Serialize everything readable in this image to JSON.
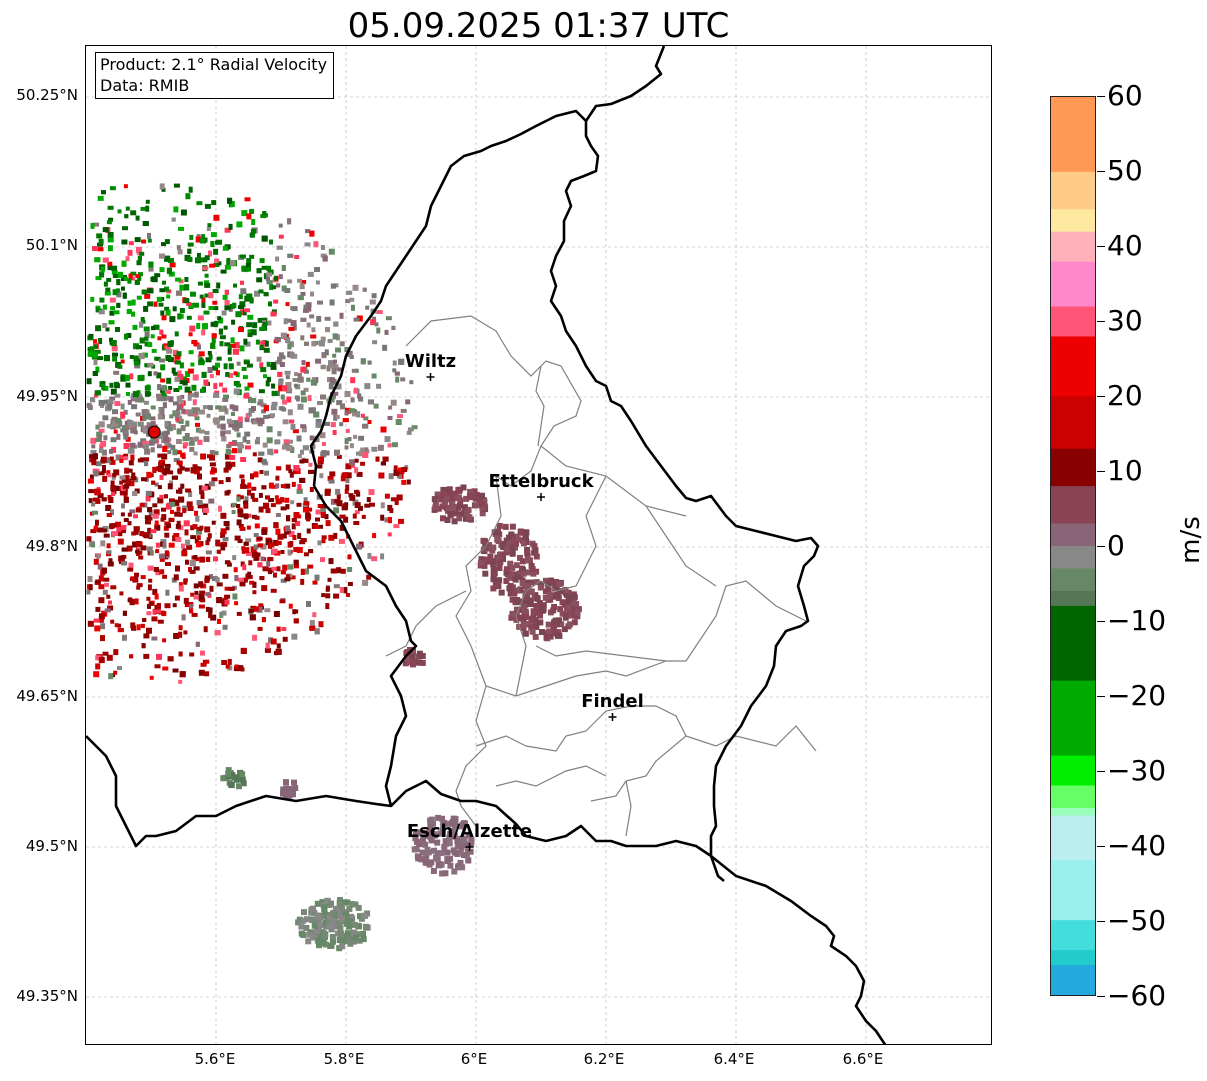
{
  "title": "05.09.2025 01:37 UTC",
  "info": {
    "product": "Product: 2.1° Radial Velocity",
    "data": "Data: RMIB"
  },
  "axes": {
    "lat_labels": [
      "50.25°N",
      "50.1°N",
      "49.95°N",
      "49.8°N",
      "49.65°N",
      "49.5°N",
      "49.35°N"
    ],
    "lon_labels": [
      "5.6°E",
      "5.8°E",
      "6°E",
      "6.2°E",
      "6.4°E",
      "6.6°E"
    ]
  },
  "cities": [
    {
      "name": "Wiltz",
      "lon": 5.93,
      "lat": 49.97
    },
    {
      "name": "Ettelbruck",
      "lon": 6.1,
      "lat": 49.85
    },
    {
      "name": "Findel",
      "lon": 6.21,
      "lat": 49.63
    },
    {
      "name": "Esch/Alzette",
      "lon": 5.99,
      "lat": 49.5
    }
  ],
  "radar_site": {
    "lon": 5.505,
    "lat": 49.915,
    "color": "#dd0000"
  },
  "colorbar": {
    "unit": "m/s",
    "min": -60,
    "max": 60,
    "tick_labels": [
      "60",
      "50",
      "40",
      "30",
      "20",
      "10",
      "0",
      "−10",
      "−20",
      "−30",
      "−40",
      "−50",
      "−60"
    ],
    "stops": [
      {
        "v": 60,
        "c": "#ff9955"
      },
      {
        "v": 50,
        "c": "#ffcc88"
      },
      {
        "v": 45,
        "c": "#ffe9a0"
      },
      {
        "v": 42,
        "c": "#ffb0b8"
      },
      {
        "v": 38,
        "c": "#ff88cc"
      },
      {
        "v": 32,
        "c": "#ff5577"
      },
      {
        "v": 28,
        "c": "#ee0000"
      },
      {
        "v": 20,
        "c": "#cc0000"
      },
      {
        "v": 13,
        "c": "#880000"
      },
      {
        "v": 8,
        "c": "#884455"
      },
      {
        "v": 3,
        "c": "#886677"
      },
      {
        "v": 0,
        "c": "#888888"
      },
      {
        "v": -3,
        "c": "#668866"
      },
      {
        "v": -6,
        "c": "#557755"
      },
      {
        "v": -8,
        "c": "#006600"
      },
      {
        "v": -18,
        "c": "#00aa00"
      },
      {
        "v": -28,
        "c": "#00ee00"
      },
      {
        "v": -32,
        "c": "#66ff66"
      },
      {
        "v": -35,
        "c": "#99ffbb"
      },
      {
        "v": -36,
        "c": "#bbeeee"
      },
      {
        "v": -42,
        "c": "#99eeee"
      },
      {
        "v": -50,
        "c": "#44dddd"
      },
      {
        "v": -54,
        "c": "#22cccc"
      },
      {
        "v": -56,
        "c": "#22aadd"
      },
      {
        "v": -60,
        "c": "#2277cc"
      }
    ]
  },
  "colors": {
    "border": "#000000",
    "canton": "#808080",
    "grid": "#b0b0b0"
  }
}
